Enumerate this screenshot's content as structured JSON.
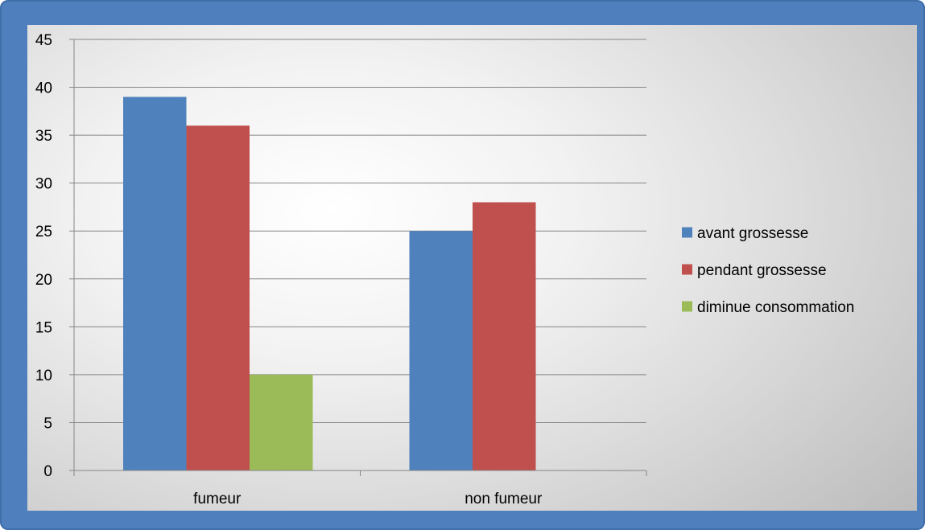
{
  "chart_data": {
    "type": "bar",
    "categories": [
      "fumeur",
      "non fumeur"
    ],
    "series": [
      {
        "name": "avant grossesse",
        "values": [
          39,
          25
        ],
        "color": "#4f81bd"
      },
      {
        "name": "pendant grossesse",
        "values": [
          36,
          28
        ],
        "color": "#c0504d"
      },
      {
        "name": "diminue consommation",
        "values": [
          10,
          0
        ],
        "color": "#9bbb59"
      }
    ],
    "ylim": [
      0,
      45
    ],
    "yticks": [
      "0",
      "5",
      "10",
      "15",
      "20",
      "25",
      "30",
      "35",
      "40",
      "45"
    ],
    "grid": true,
    "legend_position": "right"
  },
  "colors": {
    "frame": "#4f7fbd",
    "gridline": "#868686"
  }
}
